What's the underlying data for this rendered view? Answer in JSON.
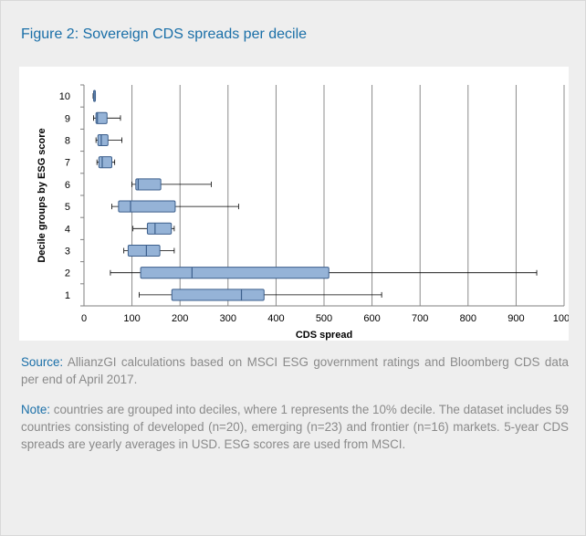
{
  "figure": {
    "title": "Figure 2: Sovereign CDS spreads per decile"
  },
  "source": {
    "label": "Source:",
    "text": "AllianzGI calculations based on MSCI ESG government ratings and Bloomberg CDS data per end of April 2017."
  },
  "note": {
    "label": "Note:",
    "text": "countries are grouped into deciles, where 1 represents the 10% decile. The dataset includes 59 countries consisting of developed (n=20), emerging (n=23) and frontier (n=16) markets. 5-year CDS spreads are yearly averages in USD. ESG scores are used from MSCI."
  },
  "colors": {
    "accent": "#1a6fa8",
    "box_fill": "#95b3d7",
    "box_stroke": "#3c5f8c",
    "grid": "#7f7f7f",
    "panel": "#eeeeee"
  },
  "chart_data": {
    "type": "boxplot",
    "orientation": "horizontal",
    "xlabel": "CDS spread",
    "ylabel": "Decile groups by ESG score",
    "xlim": [
      0,
      1000
    ],
    "xticks": [
      0,
      100,
      200,
      300,
      400,
      500,
      600,
      700,
      800,
      900,
      1000
    ],
    "grid": "vertical",
    "categories": [
      "1",
      "2",
      "3",
      "4",
      "5",
      "6",
      "7",
      "8",
      "9",
      "10"
    ],
    "boxes": [
      {
        "decile": "1",
        "min": 115,
        "q1": 183,
        "median": 328,
        "q3": 375,
        "max": 620
      },
      {
        "decile": "2",
        "min": 55,
        "q1": 118,
        "median": 225,
        "q3": 510,
        "max": 943
      },
      {
        "decile": "3",
        "min": 83,
        "q1": 92,
        "median": 130,
        "q3": 158,
        "max": 188
      },
      {
        "decile": "4",
        "min": 102,
        "q1": 132,
        "median": 148,
        "q3": 182,
        "max": 188
      },
      {
        "decile": "5",
        "min": 58,
        "q1": 72,
        "median": 97,
        "q3": 190,
        "max": 322
      },
      {
        "decile": "6",
        "min": 100,
        "q1": 108,
        "median": 113,
        "q3": 160,
        "max": 265
      },
      {
        "decile": "7",
        "min": 27,
        "q1": 31,
        "median": 38,
        "q3": 58,
        "max": 64
      },
      {
        "decile": "8",
        "min": 25,
        "q1": 29,
        "median": 36,
        "q3": 50,
        "max": 79
      },
      {
        "decile": "9",
        "min": 20,
        "q1": 25,
        "median": 28,
        "q3": 48,
        "max": 76
      },
      {
        "decile": "10",
        "min": 19,
        "q1": 20,
        "median": 21,
        "q3": 23,
        "max": 24
      }
    ]
  }
}
